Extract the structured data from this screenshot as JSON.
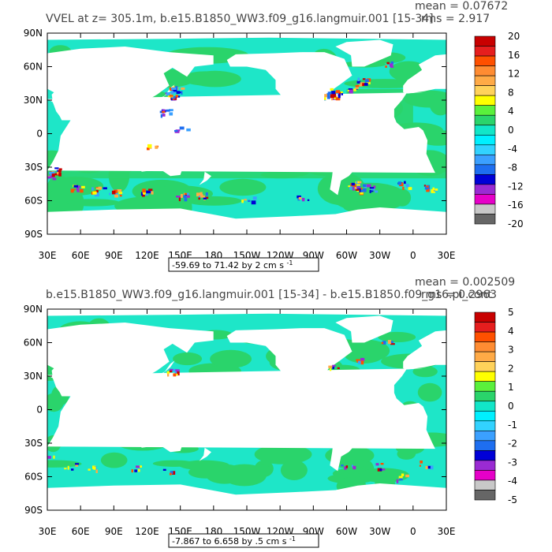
{
  "colors": {
    "scale": [
      "#666666",
      "#c8c8c8",
      "#e600c8",
      "#9a2bd3",
      "#0000d7",
      "#1e6ef0",
      "#3ba0ff",
      "#32d2ff",
      "#00f0ff",
      "#12e6c8",
      "#2ad46b",
      "#5af03c",
      "#ffff00",
      "#ffd25a",
      "#ffaa46",
      "#ff8c32",
      "#ff5000",
      "#e61e1e",
      "#c80000"
    ],
    "ocean": "#1ee6c8",
    "ocean_pos": "#2ad46b",
    "land": "#ffffff"
  },
  "chart_data": [
    {
      "type": "heatmap",
      "title": "VVEL at z= 305.1m, b.e15.B1850_WW3.f09_g16.langmuir.001 [15-34]",
      "stats": {
        "mean": "mean = 0.07672",
        "rms": "rms = 2.917"
      },
      "range_label": "-59.69 to 71.42 by 2 cm s",
      "range_unit_sup": "-1",
      "x_ticks": [
        "30E",
        "60E",
        "90E",
        "120E",
        "150E",
        "180",
        "150W",
        "120W",
        "90W",
        "60W",
        "30W",
        "0",
        "30E"
      ],
      "y_ticks": [
        "90N",
        "60N",
        "30N",
        "0",
        "30S",
        "60S",
        "90S"
      ],
      "colorbar": {
        "labels": [
          "20",
          "16",
          "12",
          "8",
          "4",
          "0",
          "-4",
          "-8",
          "-12",
          "-16",
          "-20"
        ],
        "min": -20,
        "max": 20
      }
    },
    {
      "type": "heatmap",
      "title": "b.e15.B1850_WW3.f09_g16.langmuir.001 [15-34] - b.e15.B1850.f09_g16.pi_cont",
      "stats": {
        "mean": "mean = 0.002509",
        "rms": "rms = 0.2963"
      },
      "range_label": "-7.867 to 6.658 by .5 cm s",
      "range_unit_sup": "-1",
      "x_ticks": [
        "30E",
        "60E",
        "90E",
        "120E",
        "150E",
        "180",
        "150W",
        "120W",
        "90W",
        "60W",
        "30W",
        "0",
        "30E"
      ],
      "y_ticks": [
        "90N",
        "60N",
        "30N",
        "0",
        "30S",
        "60S",
        "90S"
      ],
      "colorbar": {
        "labels": [
          "5",
          "4",
          "3",
          "2",
          "1",
          "0",
          "-1",
          "-2",
          "-3",
          "-4",
          "-5"
        ],
        "min": -5,
        "max": 5
      }
    }
  ]
}
